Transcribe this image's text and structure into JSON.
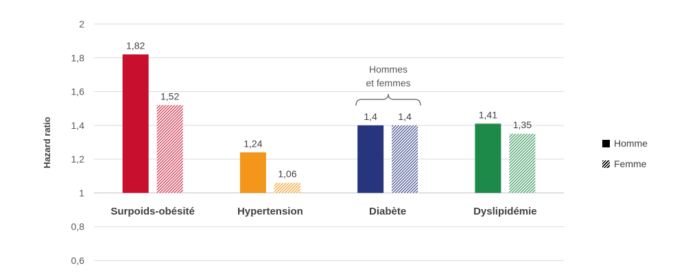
{
  "chart_data": {
    "type": "bar",
    "ylabel": "Hazard ratio",
    "ylim": [
      0.6,
      2
    ],
    "yticks": [
      0.6,
      0.8,
      1,
      1.2,
      1.4,
      1.6,
      1.8,
      2
    ],
    "ytick_labels": [
      "0,6",
      "0,8",
      "1",
      "1,2",
      "1,4",
      "1,6",
      "1,8",
      "2"
    ],
    "baseline": 1,
    "grid": true,
    "categories": [
      "Surpoids-obésité",
      "Hypertension",
      "Diabète",
      "Dyslipidémie"
    ],
    "category_colors": [
      "#C8102E",
      "#F39619",
      "#26357D",
      "#1E8A4A"
    ],
    "series": [
      {
        "name": "Homme",
        "style": "solid",
        "values": [
          1.82,
          1.24,
          1.4,
          1.41
        ],
        "labels": [
          "1,82",
          "1,24",
          "1,4",
          "1,41"
        ]
      },
      {
        "name": "Femme",
        "style": "hatched",
        "values": [
          1.52,
          1.06,
          1.4,
          1.35
        ],
        "labels": [
          "1,52",
          "1,06",
          "1,4",
          "1,35"
        ]
      }
    ],
    "annotation": {
      "category": "Diabète",
      "lines": [
        "Hommes",
        "et femmes"
      ]
    },
    "legend_position": "right"
  }
}
